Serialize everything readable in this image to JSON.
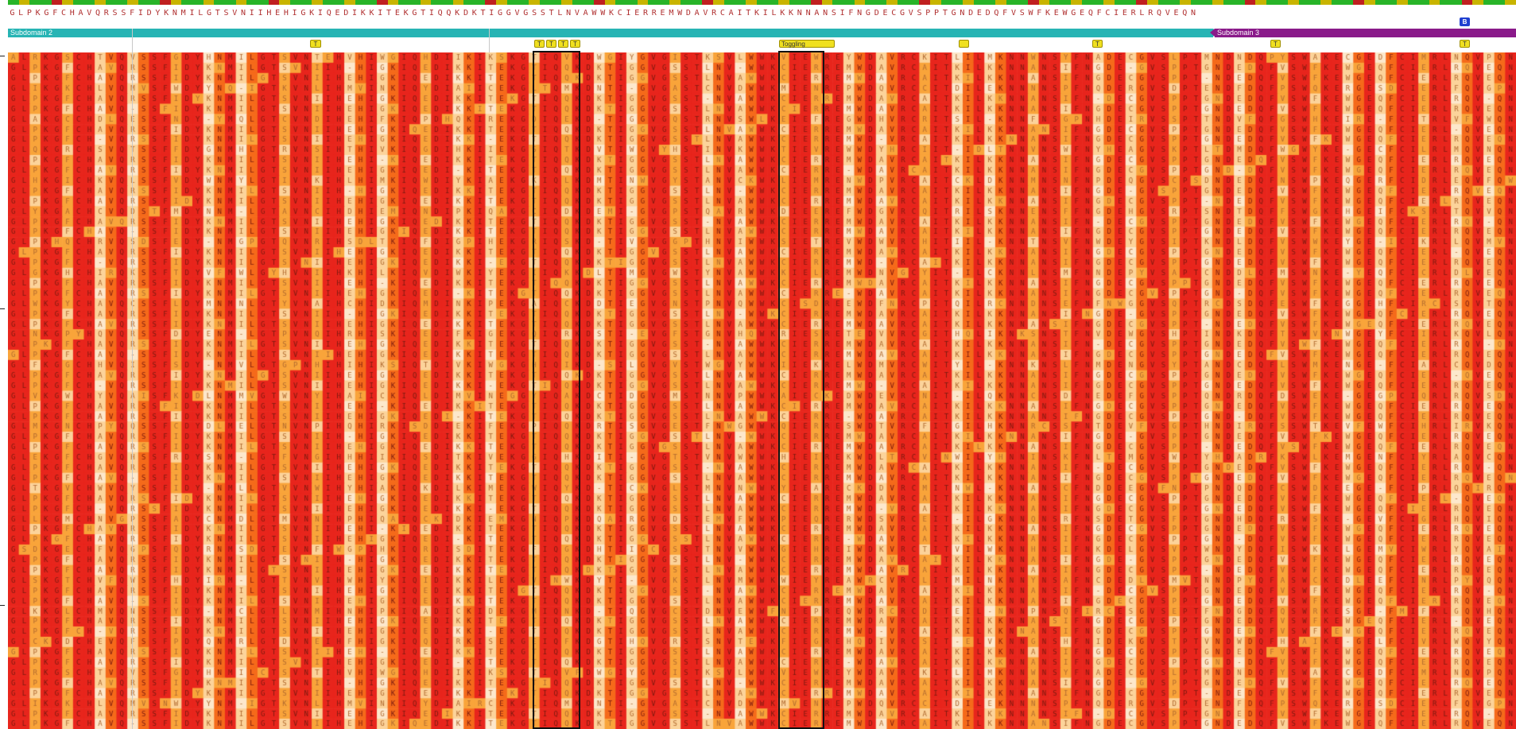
{
  "consensus_sequence": "GLPKGFCHAVQRSSFIDYKNMILGTSVNIIHEHIGKIQEDIKKITEKGTIQQKDKTIGGVGSSTLNVAWWKCIERREMWDAVRCAITKILKKNNANSIFNGDECGVSPPTGNDEDQFVSWFKEWGEQFCIERLRQVEQN",
  "domains": [
    {
      "name": "Subdomain 2"
    },
    {
      "name": "Subdomain 3"
    }
  ],
  "badge": "B",
  "tags": [
    {
      "label": "T"
    },
    {
      "label": "T"
    },
    {
      "label": "T"
    },
    {
      "label": "T"
    },
    {
      "label": "T"
    },
    {
      "label": "Toggling"
    },
    {
      "label": ""
    },
    {
      "label": "T"
    },
    {
      "label": "T"
    },
    {
      "label": "T"
    }
  ],
  "alignment": {
    "row_count": 66,
    "colors": {
      "high": "#e8251c",
      "mid_high": "#f56a1a",
      "mid": "#f9a43a",
      "low": "#fcd39a",
      "none": "#fde8cc",
      "conservation_bar_high": "#28b428",
      "conservation_bar_mid": "#c8b400",
      "conservation_bar_low": "#c02020"
    }
  }
}
